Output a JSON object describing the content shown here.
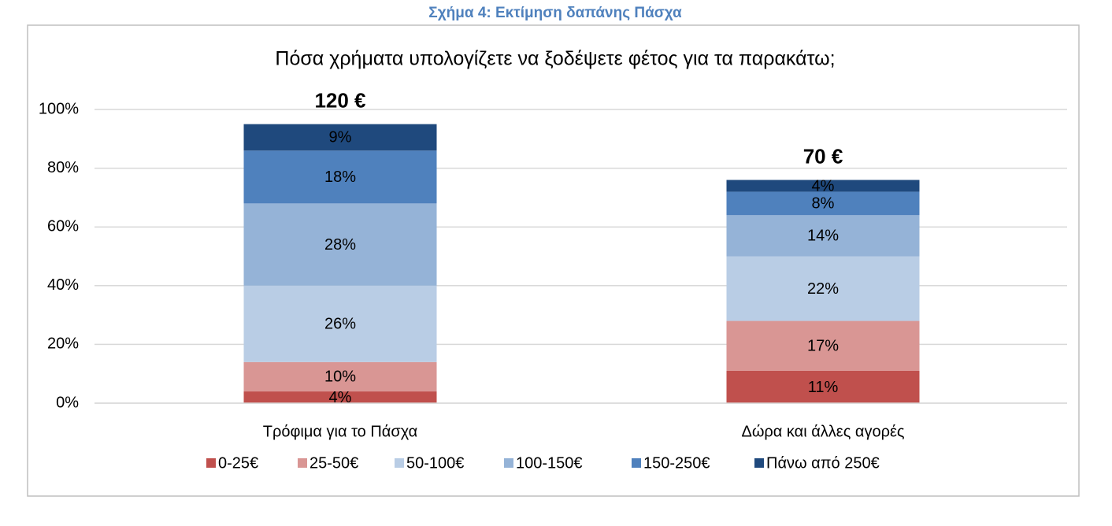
{
  "caption": "Σχήμα 4: Εκτίμηση δαπάνης Πάσχα",
  "chart_data": {
    "type": "stacked_bar",
    "title": "Πόσα χρήματα υπολογίζετε να ξοδέψετε φέτος για τα παρακάτω;",
    "categories": [
      "Τρόφιμα για το Πάσχα",
      "Δώρα και άλλες αγορές"
    ],
    "annotations": [
      "120 €",
      "70 €"
    ],
    "series": [
      {
        "name": "0-25€",
        "color": "#c0504d",
        "values": [
          4,
          11
        ],
        "value_labels": [
          "4%",
          "11%"
        ]
      },
      {
        "name": "25-50€",
        "color": "#d99694",
        "values": [
          10,
          17
        ],
        "value_labels": [
          "10%",
          "17%"
        ]
      },
      {
        "name": "50-100€",
        "color": "#b9cde5",
        "values": [
          26,
          22
        ],
        "value_labels": [
          "26%",
          "22%"
        ]
      },
      {
        "name": "100-150€",
        "color": "#95b3d7",
        "values": [
          28,
          14
        ],
        "value_labels": [
          "28%",
          "14%"
        ]
      },
      {
        "name": "150-250€",
        "color": "#4f81bd",
        "values": [
          18,
          8
        ],
        "value_labels": [
          "18%",
          "8%"
        ]
      },
      {
        "name": "Πάνω από 250€",
        "color": "#1f497d",
        "values": [
          9,
          4
        ],
        "value_labels": [
          "9%",
          "4%"
        ]
      }
    ],
    "ylim": [
      0,
      100
    ],
    "yticks": [
      {
        "value": 0,
        "label": "0%"
      },
      {
        "value": 20,
        "label": "20%"
      },
      {
        "value": 40,
        "label": "40%"
      },
      {
        "value": 60,
        "label": "60%"
      },
      {
        "value": 80,
        "label": "80%"
      },
      {
        "value": 100,
        "label": "100%"
      }
    ],
    "grid": true,
    "legend": "bottom"
  }
}
